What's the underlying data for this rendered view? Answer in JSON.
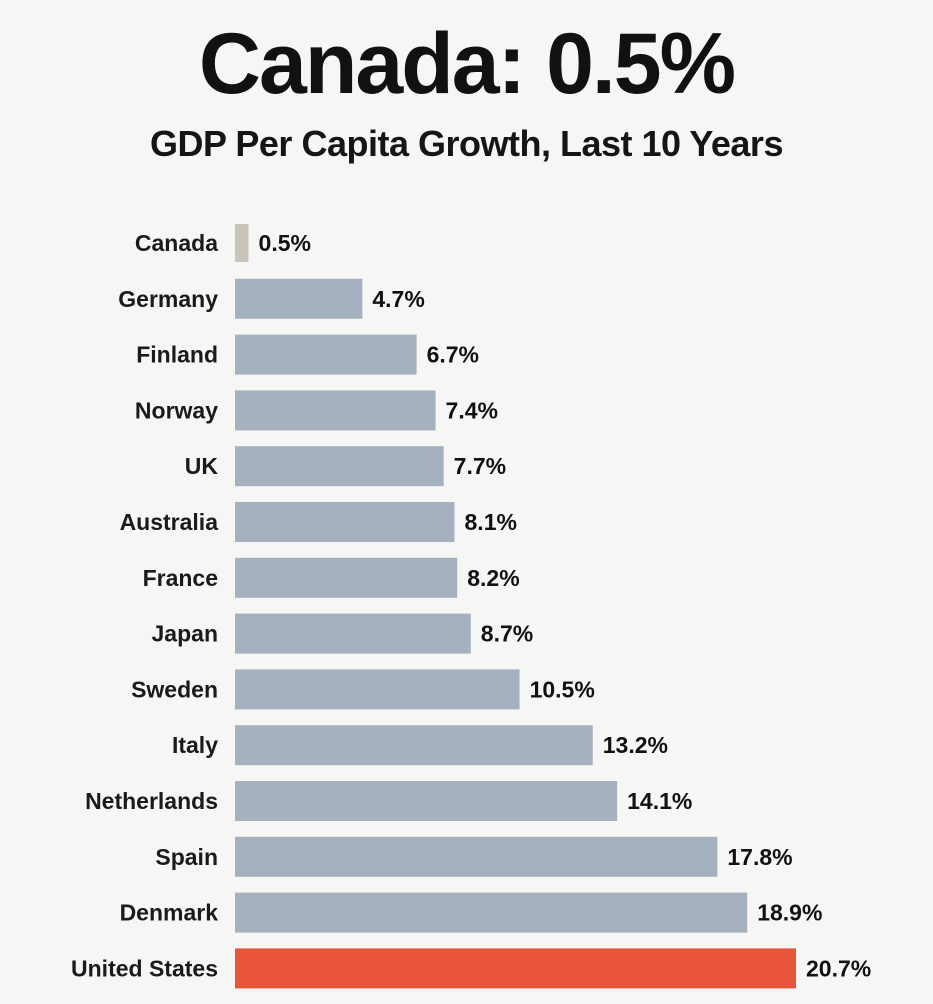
{
  "title": "Canada: 0.5%",
  "subtitle": "GDP Per Capita Growth, Last 10 Years",
  "colors": {
    "default_bar": "#a5b1bf",
    "canada_bar": "#c9c5bc",
    "highlight_bar": "#e8553a",
    "background": "#f6f6f4"
  },
  "chart_data": {
    "type": "bar",
    "orientation": "horizontal",
    "title": "Canada: 0.5%",
    "subtitle": "GDP Per Capita Growth, Last 10 Years",
    "xlabel": "",
    "ylabel": "",
    "xlim": [
      0,
      20.7
    ],
    "grid": false,
    "legend": "none",
    "categories": [
      "Canada",
      "Germany",
      "Finland",
      "Norway",
      "UK",
      "Australia",
      "France",
      "Japan",
      "Sweden",
      "Italy",
      "Netherlands",
      "Spain",
      "Denmark",
      "United States"
    ],
    "values": [
      0.5,
      4.7,
      6.7,
      7.4,
      7.7,
      8.1,
      8.2,
      8.7,
      10.5,
      13.2,
      14.1,
      17.8,
      18.9,
      20.7
    ],
    "value_labels": [
      "0.5%",
      "4.7%",
      "6.7%",
      "7.4%",
      "7.7%",
      "8.1%",
      "8.2%",
      "8.7%",
      "10.5%",
      "13.2%",
      "14.1%",
      "17.8%",
      "18.9%",
      "20.7%"
    ],
    "bar_colors": [
      "canada_bar",
      "default_bar",
      "default_bar",
      "default_bar",
      "default_bar",
      "default_bar",
      "default_bar",
      "default_bar",
      "default_bar",
      "default_bar",
      "default_bar",
      "default_bar",
      "default_bar",
      "highlight_bar"
    ]
  }
}
